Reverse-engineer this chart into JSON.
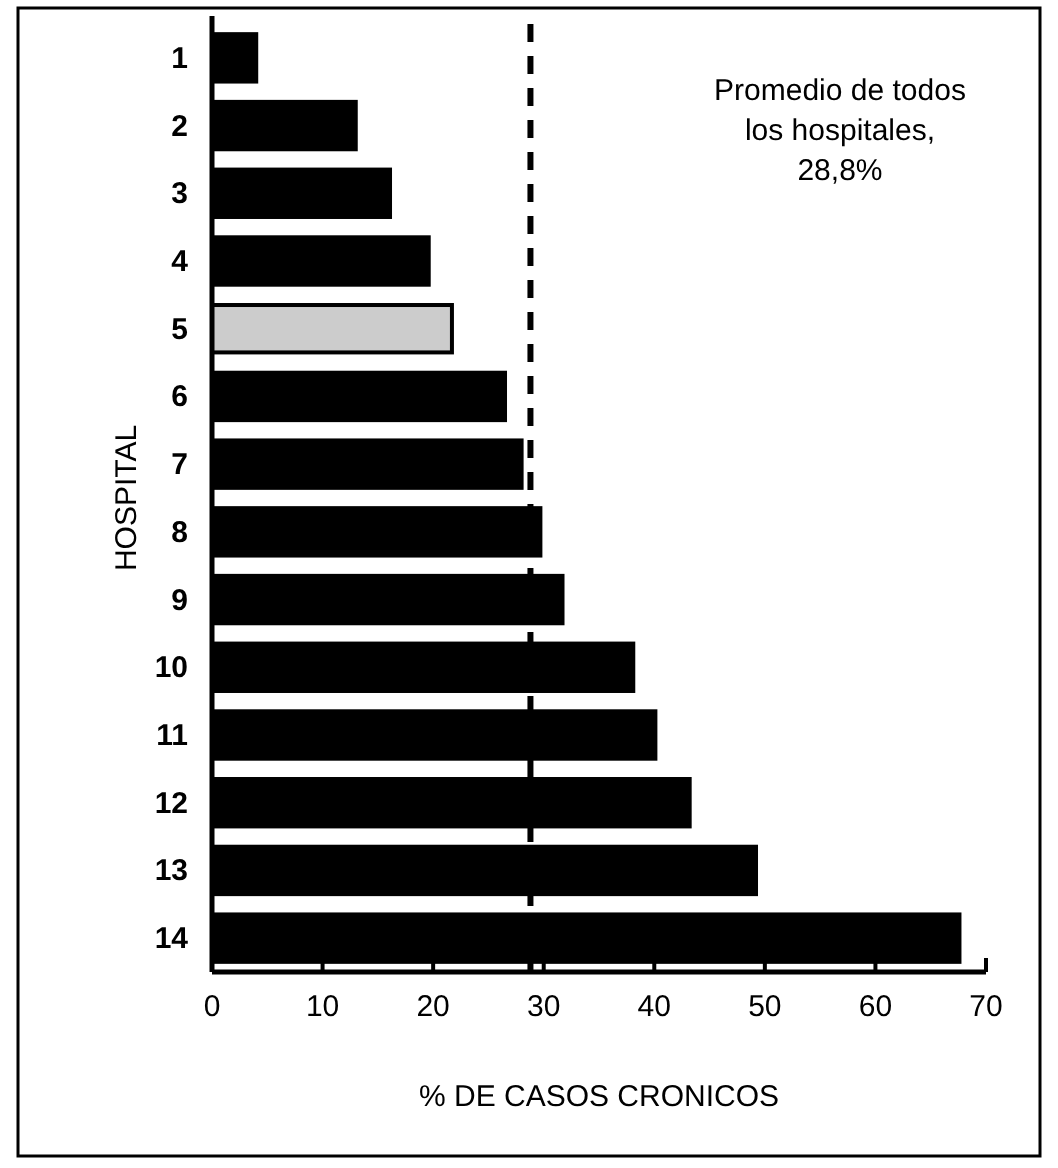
{
  "chart_data": {
    "type": "bar",
    "orientation": "horizontal",
    "xlabel": "% DE CASOS CRONICOS",
    "ylabel": "HOSPITAL",
    "categories": [
      "1",
      "2",
      "3",
      "4",
      "5",
      "6",
      "7",
      "8",
      "9",
      "10",
      "11",
      "12",
      "13",
      "14"
    ],
    "values": [
      4.0,
      13.0,
      16.1,
      19.6,
      21.7,
      26.5,
      28.0,
      29.7,
      31.7,
      38.1,
      40.1,
      43.2,
      49.2,
      67.6
    ],
    "colors": [
      "#000000",
      "#000000",
      "#000000",
      "#000000",
      "#cccccc",
      "#000000",
      "#000000",
      "#000000",
      "#000000",
      "#000000",
      "#000000",
      "#000000",
      "#000000",
      "#000000"
    ],
    "xlim": [
      0,
      70
    ],
    "xticks": [
      0,
      10,
      20,
      30,
      40,
      50,
      60,
      70
    ],
    "ref_lines": [
      {
        "axis": "x",
        "value": 28.8,
        "label": "Promedio de todos los hospitales, 28,8%",
        "line_style": "dashed",
        "color": "#000000"
      }
    ],
    "grid": false
  }
}
